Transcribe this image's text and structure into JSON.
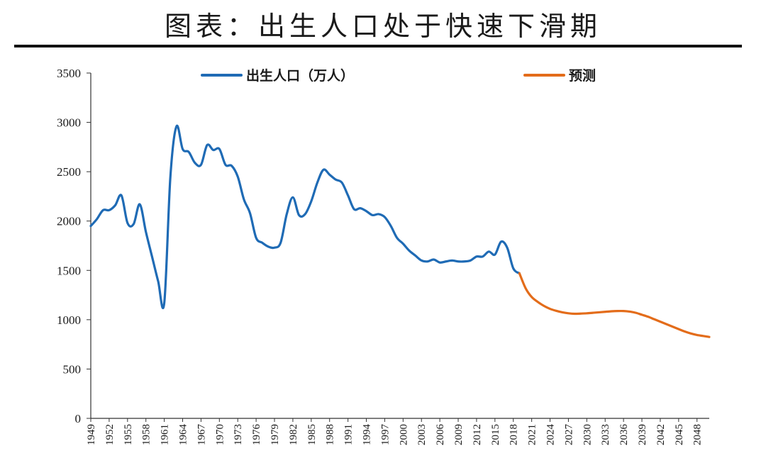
{
  "header": {
    "title": "图表：出生人口处于快速下滑期"
  },
  "colors": {
    "actual": "#1f6bb5",
    "forecast": "#e36c1a"
  },
  "chart_data": {
    "type": "line",
    "title": "图表：出生人口处于快速下滑期",
    "xlabel": "",
    "ylabel": "",
    "ylim": [
      0,
      3500
    ],
    "xlim": [
      1949,
      2050
    ],
    "y_ticks": [
      0,
      500,
      1000,
      1500,
      2000,
      2500,
      3000,
      3500
    ],
    "x_ticks": [
      1949,
      1952,
      1955,
      1958,
      1961,
      1964,
      1967,
      1970,
      1973,
      1976,
      1979,
      1982,
      1985,
      1988,
      1991,
      1994,
      1997,
      2000,
      2003,
      2006,
      2009,
      2012,
      2015,
      2018,
      2021,
      2024,
      2027,
      2030,
      2033,
      2036,
      2039,
      2042,
      2045,
      2048
    ],
    "legend_position": "top",
    "series": [
      {
        "name": "出生人口（万人）",
        "color": "#1f6bb5",
        "x": [
          1949,
          1950,
          1951,
          1952,
          1953,
          1954,
          1955,
          1956,
          1957,
          1958,
          1959,
          1960,
          1961,
          1962,
          1963,
          1964,
          1965,
          1966,
          1967,
          1968,
          1969,
          1970,
          1971,
          1972,
          1973,
          1974,
          1975,
          1976,
          1977,
          1978,
          1979,
          1980,
          1981,
          1982,
          1983,
          1984,
          1985,
          1986,
          1987,
          1988,
          1989,
          1990,
          1991,
          1992,
          1993,
          1994,
          1995,
          1996,
          1997,
          1998,
          1999,
          2000,
          2001,
          2002,
          2003,
          2004,
          2005,
          2006,
          2007,
          2008,
          2009,
          2010,
          2011,
          2012,
          2013,
          2014,
          2015,
          2016,
          2017,
          2018,
          2019
        ],
        "values": [
          1950,
          2020,
          2110,
          2110,
          2160,
          2260,
          1980,
          1970,
          2170,
          1890,
          1640,
          1390,
          1170,
          2450,
          2960,
          2730,
          2700,
          2590,
          2570,
          2770,
          2720,
          2730,
          2570,
          2560,
          2450,
          2220,
          2080,
          1830,
          1780,
          1740,
          1730,
          1780,
          2070,
          2240,
          2060,
          2070,
          2200,
          2390,
          2520,
          2470,
          2420,
          2390,
          2260,
          2120,
          2130,
          2100,
          2060,
          2070,
          2040,
          1950,
          1830,
          1770,
          1700,
          1650,
          1600,
          1590,
          1610,
          1580,
          1590,
          1600,
          1590,
          1590,
          1600,
          1640,
          1640,
          1690,
          1660,
          1790,
          1730,
          1520,
          1470
        ]
      },
      {
        "name": "预测",
        "color": "#e36c1a",
        "x": [
          2019,
          2020,
          2021,
          2022,
          2023,
          2024,
          2025,
          2026,
          2027,
          2028,
          2029,
          2030,
          2031,
          2032,
          2033,
          2034,
          2035,
          2036,
          2037,
          2038,
          2039,
          2040,
          2041,
          2042,
          2043,
          2044,
          2045,
          2046,
          2047,
          2048,
          2049,
          2050
        ],
        "values": [
          1470,
          1320,
          1230,
          1180,
          1140,
          1110,
          1090,
          1075,
          1065,
          1060,
          1062,
          1065,
          1070,
          1075,
          1080,
          1085,
          1088,
          1088,
          1082,
          1070,
          1050,
          1030,
          1005,
          980,
          955,
          930,
          905,
          880,
          860,
          845,
          835,
          825
        ]
      }
    ]
  }
}
